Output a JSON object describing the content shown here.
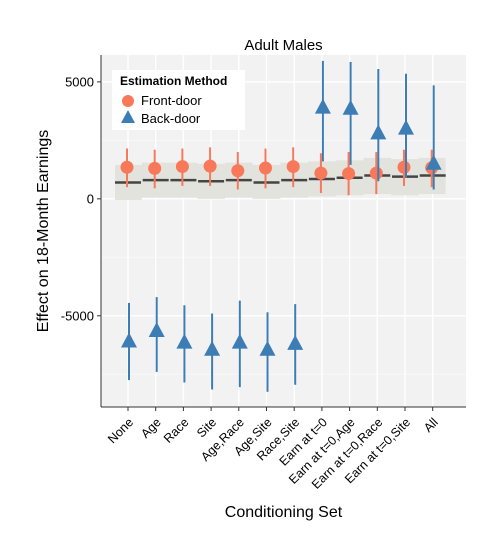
{
  "chart_data": {
    "type": "scatter",
    "title": "Adult Males",
    "xlabel": "Conditioning Set",
    "ylabel": "Effect on 18-Month Earnings",
    "categories": [
      "None",
      "Age",
      "Race",
      "Site",
      "Age,Race",
      "Age,Site",
      "Race,Site",
      "Earn at t=0",
      "Earn at t=0,Age",
      "Earn at t=0,Race",
      "Earn at t=0,Site",
      "All"
    ],
    "ylim": [
      -8900,
      6150
    ],
    "yticks": [
      -5000,
      0,
      5000
    ],
    "grid": true,
    "legend": {
      "title": "Estimation Method",
      "position": "top-left",
      "entries": [
        "Front-door",
        "Back-door"
      ]
    },
    "colors": {
      "front_door": "#F8785A",
      "back_door": "#3D7DB5",
      "benchmark": "#444444",
      "band": "#E3E3DE"
    },
    "series": [
      {
        "name": "Front-door",
        "marker": "circle",
        "values": [
          1350,
          1300,
          1380,
          1400,
          1200,
          1320,
          1380,
          1100,
          1080,
          1100,
          1350,
          1330
        ],
        "lower": [
          500,
          450,
          550,
          550,
          400,
          450,
          500,
          250,
          150,
          200,
          550,
          500
        ],
        "upper": [
          2150,
          2100,
          2150,
          2200,
          2000,
          2150,
          2200,
          1950,
          2000,
          2000,
          2100,
          2100
        ]
      },
      {
        "name": "Back-door",
        "marker": "triangle",
        "values": [
          -6100,
          -5650,
          -6150,
          -6450,
          -6150,
          -6450,
          -6200,
          3900,
          3850,
          2800,
          3000,
          1500
        ],
        "lower": [
          -7750,
          -7400,
          -7850,
          -8150,
          -8050,
          -8250,
          -7950,
          1600,
          1450,
          750,
          900,
          400
        ],
        "upper": [
          -4450,
          -4200,
          -4550,
          -4900,
          -4350,
          -4850,
          -4500,
          5900,
          5850,
          5550,
          5350,
          4850
        ]
      }
    ],
    "benchmark": {
      "values": [
        700,
        800,
        800,
        750,
        800,
        700,
        800,
        850,
        900,
        1000,
        950,
        1000
      ],
      "lower": [
        -50,
        50,
        50,
        0,
        50,
        0,
        50,
        100,
        150,
        200,
        150,
        200
      ],
      "upper": [
        1450,
        1550,
        1550,
        1500,
        1550,
        1450,
        1550,
        1600,
        1650,
        1750,
        1700,
        1750
      ]
    }
  }
}
